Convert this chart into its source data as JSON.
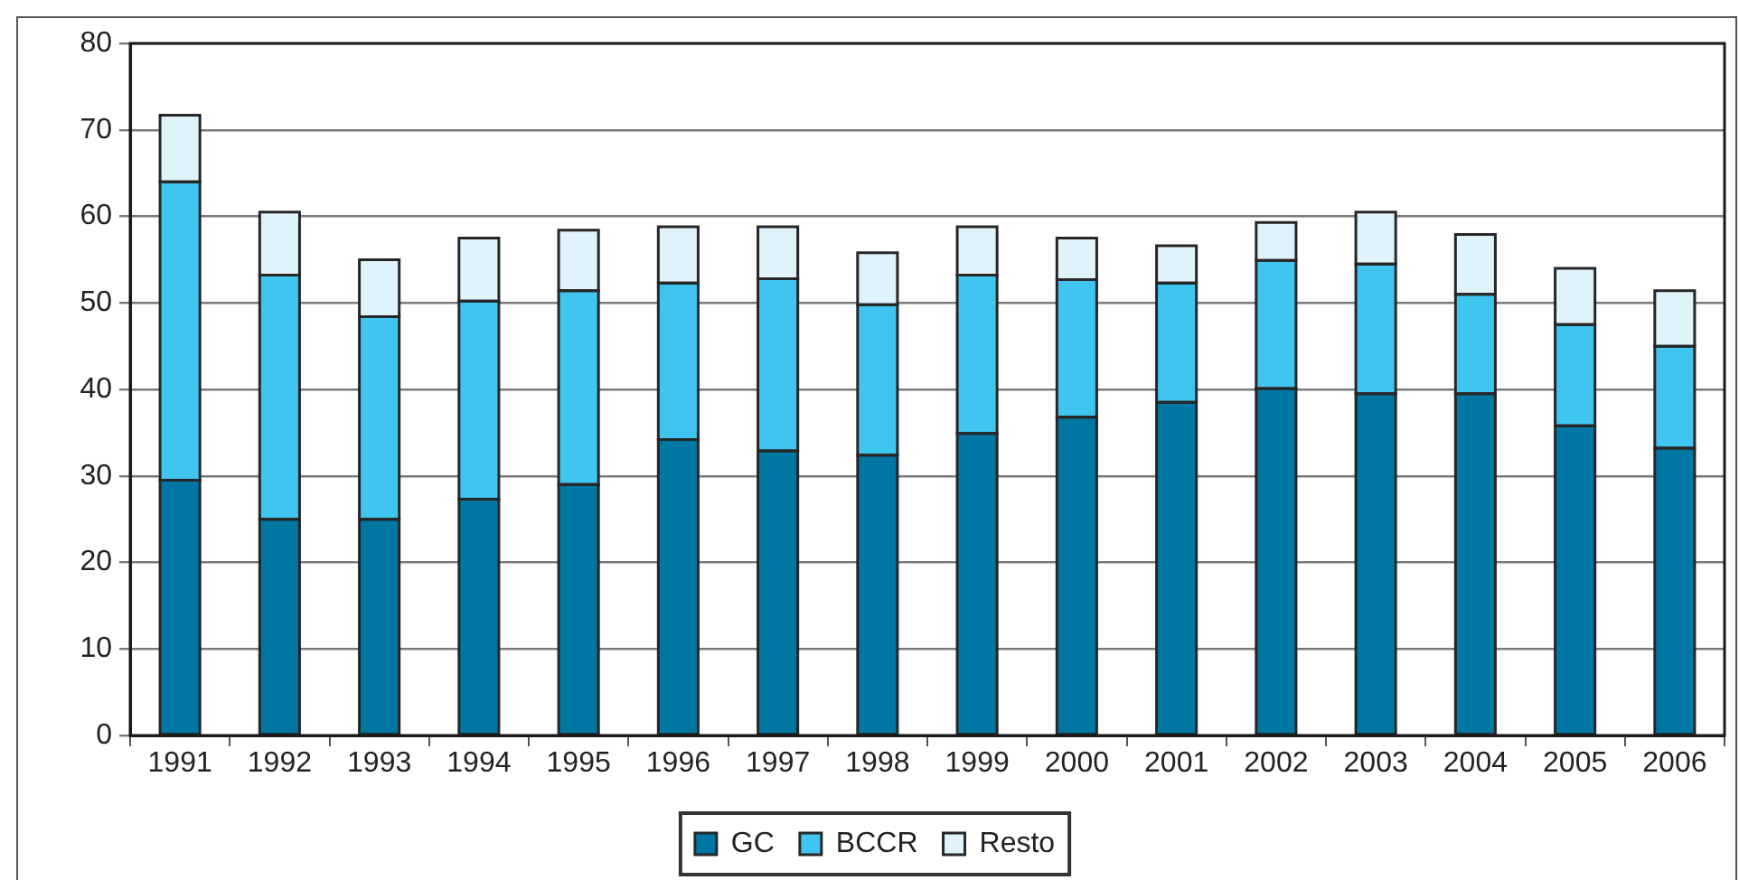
{
  "chart_data": {
    "type": "bar",
    "stacked": true,
    "categories": [
      "1991",
      "1992",
      "1993",
      "1994",
      "1995",
      "1996",
      "1997",
      "1998",
      "1999",
      "2000",
      "2001",
      "2002",
      "2003",
      "2004",
      "2005",
      "2006"
    ],
    "series": [
      {
        "name": "GC",
        "color": "#0077a3",
        "values": [
          29.5,
          25.0,
          25.0,
          27.3,
          29.0,
          34.2,
          32.9,
          32.4,
          34.9,
          36.8,
          38.5,
          40.1,
          39.5,
          39.5,
          35.8,
          33.2
        ]
      },
      {
        "name": "BCCR",
        "color": "#40c4f0",
        "values": [
          34.5,
          28.2,
          23.4,
          22.9,
          22.4,
          18.1,
          19.9,
          17.4,
          18.3,
          15.9,
          13.8,
          14.8,
          15.0,
          11.5,
          11.7,
          11.8
        ]
      },
      {
        "name": "Resto",
        "color": "#e0f3fb",
        "values": [
          7.7,
          7.3,
          6.6,
          7.3,
          7.0,
          6.5,
          6.0,
          6.0,
          5.6,
          4.8,
          4.3,
          4.4,
          6.0,
          6.9,
          6.5,
          6.4
        ]
      }
    ],
    "ylim": [
      0,
      80
    ],
    "yticks": [
      0,
      10,
      20,
      30,
      40,
      50,
      60,
      70,
      80
    ],
    "grid": "y",
    "legend": "bottom"
  }
}
